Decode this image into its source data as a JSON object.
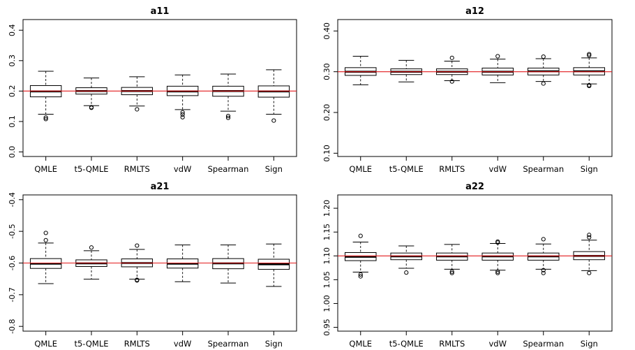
{
  "chart_data": [
    {
      "type": "boxplot",
      "title": "a11",
      "categories": [
        "QMLE",
        "t5-QMLE",
        "RMLTS",
        "vdW",
        "Spearman",
        "Sign"
      ],
      "ylim": [
        -0.015,
        0.435
      ],
      "yticks": [
        "0.0",
        "0.1",
        "0.2",
        "0.3",
        "0.4"
      ],
      "ytick_values": [
        0.0,
        0.1,
        0.2,
        0.3,
        0.4
      ],
      "reference_line": 0.2,
      "reference_color": "#e31a1c",
      "boxes": [
        {
          "q1": 0.181,
          "median": 0.199,
          "q3": 0.218,
          "whisker_low": 0.124,
          "whisker_high": 0.265,
          "outliers": [
            0.113,
            0.108
          ]
        },
        {
          "q1": 0.19,
          "median": 0.2,
          "q3": 0.211,
          "whisker_low": 0.152,
          "whisker_high": 0.243,
          "outliers": [
            0.147,
            0.145
          ]
        },
        {
          "q1": 0.188,
          "median": 0.2,
          "q3": 0.212,
          "whisker_low": 0.151,
          "whisker_high": 0.247,
          "outliers": [
            0.14
          ]
        },
        {
          "q1": 0.185,
          "median": 0.199,
          "q3": 0.216,
          "whisker_low": 0.139,
          "whisker_high": 0.253,
          "outliers": [
            0.13,
            0.123,
            0.114
          ]
        },
        {
          "q1": 0.183,
          "median": 0.2,
          "q3": 0.216,
          "whisker_low": 0.134,
          "whisker_high": 0.256,
          "outliers": [
            0.118,
            0.112
          ]
        },
        {
          "q1": 0.18,
          "median": 0.199,
          "q3": 0.217,
          "whisker_low": 0.124,
          "whisker_high": 0.27,
          "outliers": [
            0.103
          ]
        }
      ]
    },
    {
      "type": "boxplot",
      "title": "a12",
      "categories": [
        "QMLE",
        "t5-QMLE",
        "RMLTS",
        "vdW",
        "Spearman",
        "Sign"
      ],
      "ylim": [
        0.092,
        0.428
      ],
      "yticks": [
        "0.10",
        "0.20",
        "0.30",
        "0.40"
      ],
      "ytick_values": [
        0.1,
        0.2,
        0.3,
        0.4
      ],
      "reference_line": 0.3,
      "reference_color": "#e31a1c",
      "boxes": [
        {
          "q1": 0.291,
          "median": 0.3,
          "q3": 0.31,
          "whisker_low": 0.268,
          "whisker_high": 0.338,
          "outliers": []
        },
        {
          "q1": 0.293,
          "median": 0.3,
          "q3": 0.307,
          "whisker_low": 0.275,
          "whisker_high": 0.328,
          "outliers": []
        },
        {
          "q1": 0.293,
          "median": 0.3,
          "q3": 0.307,
          "whisker_low": 0.278,
          "whisker_high": 0.326,
          "outliers": [
            0.334,
            0.276
          ]
        },
        {
          "q1": 0.292,
          "median": 0.3,
          "q3": 0.309,
          "whisker_low": 0.273,
          "whisker_high": 0.331,
          "outliers": [
            0.338
          ]
        },
        {
          "q1": 0.292,
          "median": 0.301,
          "q3": 0.309,
          "whisker_low": 0.276,
          "whisker_high": 0.332,
          "outliers": [
            0.337,
            0.271
          ]
        },
        {
          "q1": 0.292,
          "median": 0.301,
          "q3": 0.31,
          "whisker_low": 0.27,
          "whisker_high": 0.334,
          "outliers": [
            0.343,
            0.34,
            0.267,
            0.265
          ]
        }
      ]
    },
    {
      "type": "boxplot",
      "title": "a21",
      "categories": [
        "QMLE",
        "t5-QMLE",
        "RMLTS",
        "vdW",
        "Spearman",
        "Sign"
      ],
      "ylim": [
        -0.815,
        -0.385
      ],
      "yticks": [
        "-0.8",
        "-0.7",
        "-0.6",
        "-0.5",
        "-0.4"
      ],
      "ytick_values": [
        -0.8,
        -0.7,
        -0.6,
        -0.5,
        -0.4
      ],
      "reference_line": -0.6,
      "reference_color": "#e31a1c",
      "boxes": [
        {
          "q1": -0.617,
          "median": -0.602,
          "q3": -0.586,
          "whisker_low": -0.665,
          "whisker_high": -0.537,
          "outliers": [
            -0.505,
            -0.528
          ]
        },
        {
          "q1": -0.611,
          "median": -0.601,
          "q3": -0.59,
          "whisker_low": -0.651,
          "whisker_high": -0.561,
          "outliers": [
            -0.551
          ]
        },
        {
          "q1": -0.612,
          "median": -0.6,
          "q3": -0.587,
          "whisker_low": -0.651,
          "whisker_high": -0.557,
          "outliers": [
            -0.545,
            -0.653,
            -0.655
          ]
        },
        {
          "q1": -0.616,
          "median": -0.602,
          "q3": -0.587,
          "whisker_low": -0.659,
          "whisker_high": -0.543,
          "outliers": []
        },
        {
          "q1": -0.618,
          "median": -0.601,
          "q3": -0.586,
          "whisker_low": -0.663,
          "whisker_high": -0.543,
          "outliers": []
        },
        {
          "q1": -0.62,
          "median": -0.604,
          "q3": -0.588,
          "whisker_low": -0.674,
          "whisker_high": -0.54,
          "outliers": []
        }
      ]
    },
    {
      "type": "boxplot",
      "title": "a22",
      "categories": [
        "QMLE",
        "t5-QMLE",
        "RMLTS",
        "vdW",
        "Spearman",
        "Sign"
      ],
      "ylim": [
        0.942,
        1.228
      ],
      "yticks": [
        "0.95",
        "1.00",
        "1.05",
        "1.10",
        "1.15",
        "1.20"
      ],
      "ytick_values": [
        0.95,
        1.0,
        1.05,
        1.1,
        1.15,
        1.2
      ],
      "reference_line": 1.1,
      "reference_color": "#e31a1c",
      "boxes": [
        {
          "q1": 1.09,
          "median": 1.098,
          "q3": 1.107,
          "whisker_low": 1.066,
          "whisker_high": 1.129,
          "outliers": [
            1.142,
            1.061,
            1.057
          ]
        },
        {
          "q1": 1.092,
          "median": 1.099,
          "q3": 1.106,
          "whisker_low": 1.074,
          "whisker_high": 1.121,
          "outliers": [
            1.065
          ]
        },
        {
          "q1": 1.091,
          "median": 1.099,
          "q3": 1.106,
          "whisker_low": 1.072,
          "whisker_high": 1.124,
          "outliers": [
            1.067,
            1.064
          ]
        },
        {
          "q1": 1.091,
          "median": 1.099,
          "q3": 1.106,
          "whisker_low": 1.07,
          "whisker_high": 1.126,
          "outliers": [
            1.13,
            1.128,
            1.067,
            1.064
          ]
        },
        {
          "q1": 1.091,
          "median": 1.099,
          "q3": 1.106,
          "whisker_low": 1.072,
          "whisker_high": 1.125,
          "outliers": [
            1.135,
            1.07,
            1.064
          ]
        },
        {
          "q1": 1.092,
          "median": 1.1,
          "q3": 1.109,
          "whisker_low": 1.069,
          "whisker_high": 1.133,
          "outliers": [
            1.144,
            1.139,
            1.064
          ]
        }
      ]
    }
  ]
}
